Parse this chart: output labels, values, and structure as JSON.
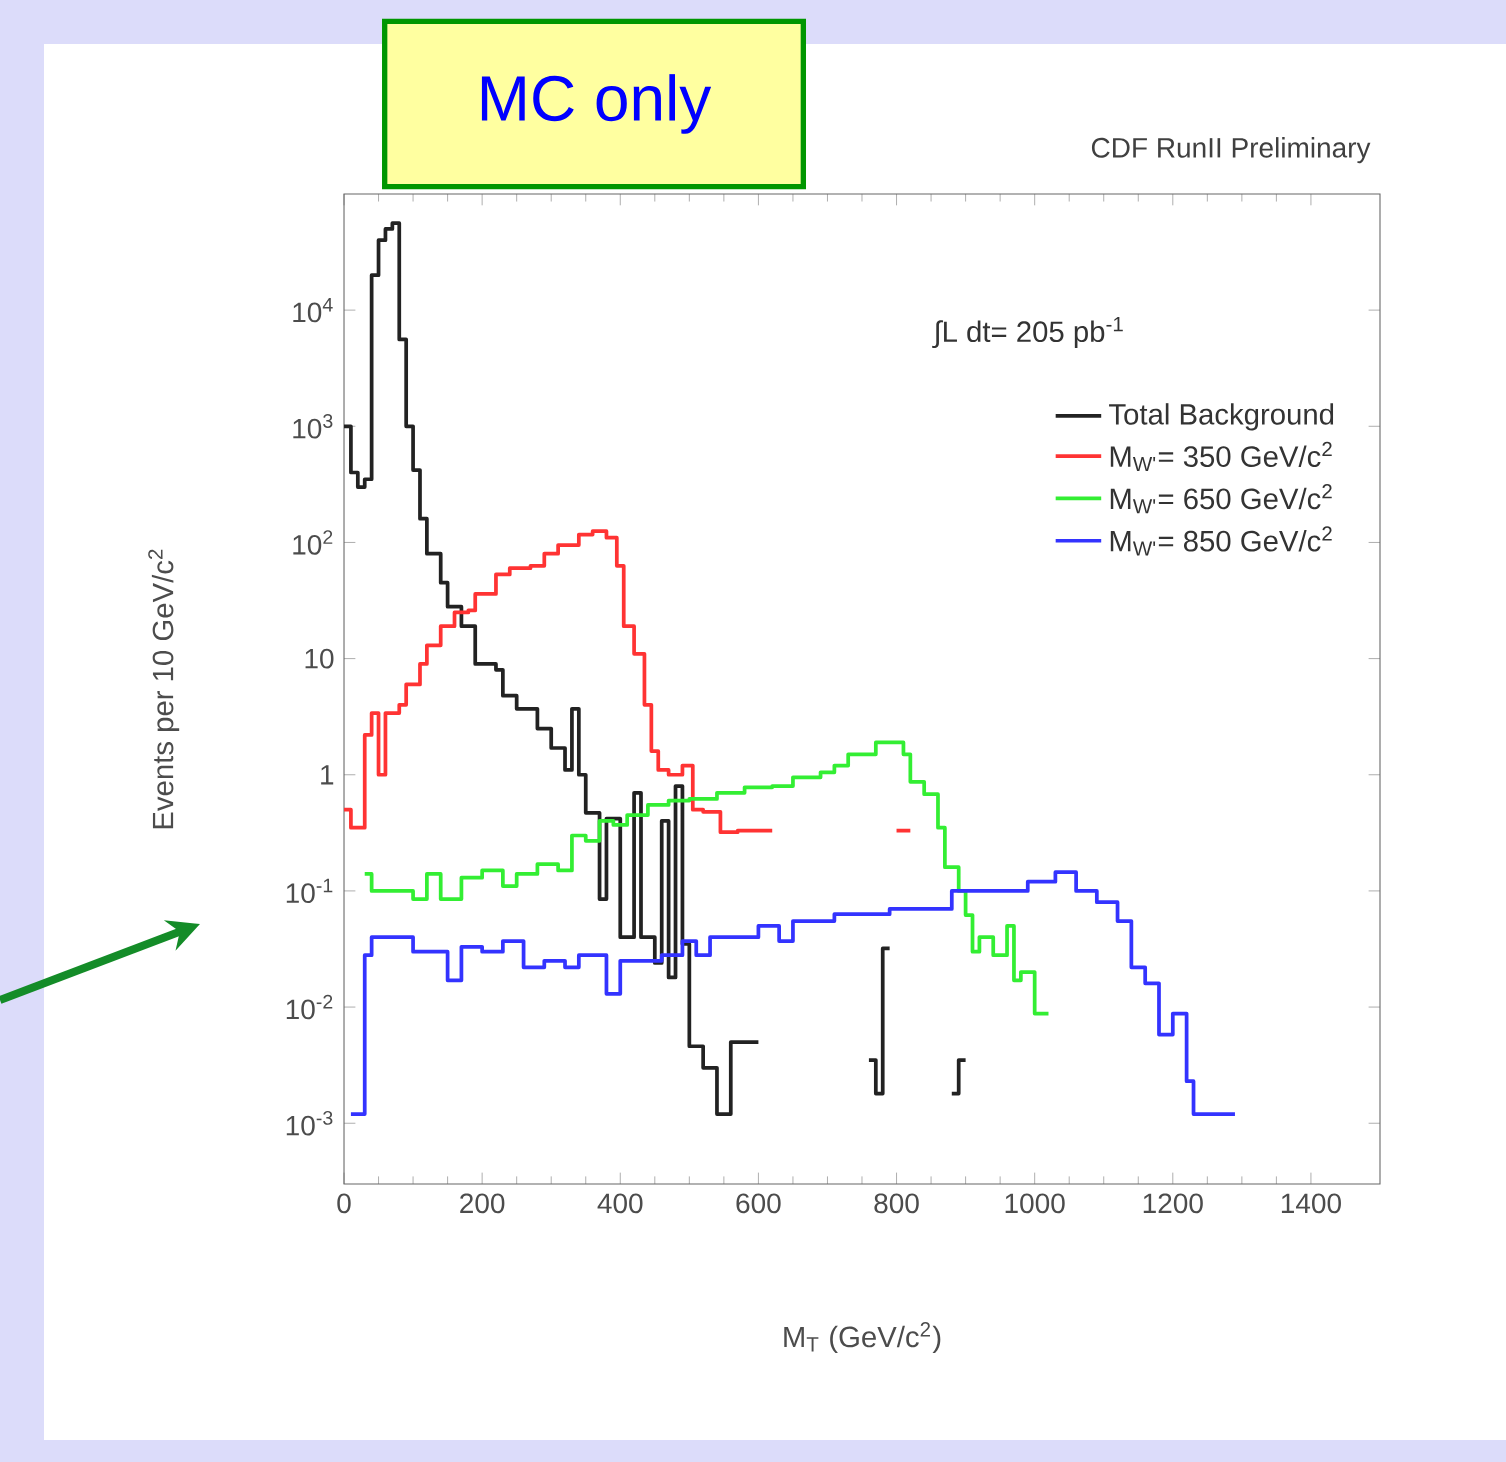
{
  "chart_data": {
    "type": "step",
    "title": "CDF RunII Preliminary",
    "xlabel": "M$_{T}$ (GeV/c$^{2}$)",
    "ylabel": "Events per 10 GeV/c$^{2}$",
    "annotations": [
      "MC only",
      "∫L dt= 205 pb$^{-1}$"
    ],
    "xlim": [
      0,
      1500
    ],
    "xticks": [
      0,
      200,
      400,
      600,
      800,
      1000,
      1200,
      1400
    ],
    "ylim": [
      0.0003,
      100000
    ],
    "log": "y",
    "yticks": [
      {
        "value": 0.001,
        "label": "10$^{-3}$"
      },
      {
        "value": 0.01,
        "label": "10$^{-2}$"
      },
      {
        "value": 0.1,
        "label": "10$^{-1}$"
      },
      1,
      10,
      {
        "value": 100,
        "label": "10$^{2}$"
      },
      {
        "value": 1000,
        "label": "10$^{3}$"
      },
      {
        "value": 10000,
        "label": "10$^{4}$"
      }
    ],
    "legend": "top right",
    "series": [
      {
        "name": "Total Background",
        "color": "#222222",
        "x": [
          0,
          10,
          20,
          30,
          40,
          50,
          60,
          70,
          80,
          90,
          100,
          110,
          120,
          140,
          150,
          170,
          190,
          220,
          230,
          250,
          280,
          300,
          320,
          330,
          340,
          350,
          370,
          380,
          400,
          420,
          430,
          450,
          460,
          470,
          480,
          490,
          500,
          520,
          540,
          560,
          600,
          680,
          760,
          770,
          780,
          790,
          830,
          880,
          890,
          900
        ],
        "values": [
          1000,
          400,
          300,
          350,
          20000,
          40000,
          50000,
          56000,
          5600,
          1000,
          420,
          160,
          80,
          45,
          28,
          19,
          9,
          8,
          4.8,
          3.7,
          2.5,
          1.7,
          1.1,
          3.7,
          1.0,
          0.47,
          0.085,
          0.42,
          0.04,
          0.7,
          0.04,
          0.024,
          0.4,
          0.018,
          0.8,
          0.035,
          0.0046,
          0.003,
          0.0012,
          0.005,
          0.005,
          null,
          0.0035,
          0.0018,
          0.032,
          0.032,
          null,
          0.0018,
          0.0035,
          0.0035
        ]
      },
      {
        "name": "M$_{W'}$= 350 GeV/c$^{2}$",
        "color": "#ff3333",
        "x": [
          0,
          10,
          20,
          30,
          40,
          50,
          60,
          80,
          90,
          110,
          120,
          140,
          160,
          180,
          190,
          220,
          240,
          270,
          290,
          310,
          340,
          360,
          380,
          395,
          405,
          420,
          435,
          445,
          455,
          470,
          490,
          505,
          520,
          545,
          570,
          620,
          700,
          800,
          820
        ],
        "values": [
          0.5,
          0.35,
          0.35,
          2.2,
          3.4,
          1.0,
          3.4,
          4,
          6,
          9,
          13,
          19,
          25,
          26,
          36,
          53,
          60,
          63,
          80,
          95,
          117,
          125,
          110,
          63,
          19,
          11,
          4,
          1.6,
          1.1,
          1.0,
          1.2,
          0.5,
          0.48,
          0.32,
          0.33,
          0.33,
          null,
          0.33,
          0.33
        ]
      },
      {
        "name": "M$_{W'}$= 650 GeV/c$^{2}$",
        "color": "#33ee33",
        "x": [
          30,
          40,
          100,
          120,
          140,
          170,
          200,
          230,
          250,
          280,
          310,
          330,
          350,
          370,
          390,
          410,
          440,
          470,
          500,
          540,
          580,
          620,
          650,
          690,
          710,
          730,
          770,
          810,
          820,
          840,
          860,
          870,
          890,
          900,
          910,
          920,
          940,
          960,
          970,
          980,
          1000,
          1020
        ],
        "values": [
          0.14,
          0.1,
          0.085,
          0.14,
          0.085,
          0.13,
          0.15,
          0.11,
          0.14,
          0.17,
          0.15,
          0.3,
          0.27,
          0.4,
          0.37,
          0.45,
          0.55,
          0.6,
          0.62,
          0.7,
          0.78,
          0.8,
          0.95,
          1.05,
          1.2,
          1.5,
          1.9,
          1.5,
          0.87,
          0.68,
          0.35,
          0.16,
          0.1,
          0.062,
          0.03,
          0.04,
          0.028,
          0.05,
          0.017,
          0.02,
          0.0088,
          0.0088
        ]
      },
      {
        "name": "M$_{W'}$= 850 GeV/c$^{2}$",
        "color": "#3333ff",
        "x": [
          10,
          30,
          40,
          100,
          130,
          150,
          170,
          200,
          230,
          260,
          290,
          320,
          340,
          380,
          400,
          440,
          460,
          490,
          510,
          530,
          600,
          630,
          650,
          710,
          790,
          880,
          990,
          1030,
          1060,
          1090,
          1120,
          1140,
          1160,
          1180,
          1200,
          1220,
          1230,
          1290
        ],
        "values": [
          0.0012,
          0.028,
          0.04,
          0.03,
          0.03,
          0.017,
          0.033,
          0.03,
          0.037,
          0.022,
          0.025,
          0.022,
          0.028,
          0.013,
          0.025,
          0.025,
          0.028,
          0.037,
          0.028,
          0.04,
          0.05,
          0.037,
          0.055,
          0.063,
          0.07,
          0.1,
          0.12,
          0.145,
          0.1,
          0.08,
          0.055,
          0.022,
          0.016,
          0.0058,
          0.0088,
          0.0023,
          0.0012,
          0.0012
        ]
      }
    ]
  }
}
